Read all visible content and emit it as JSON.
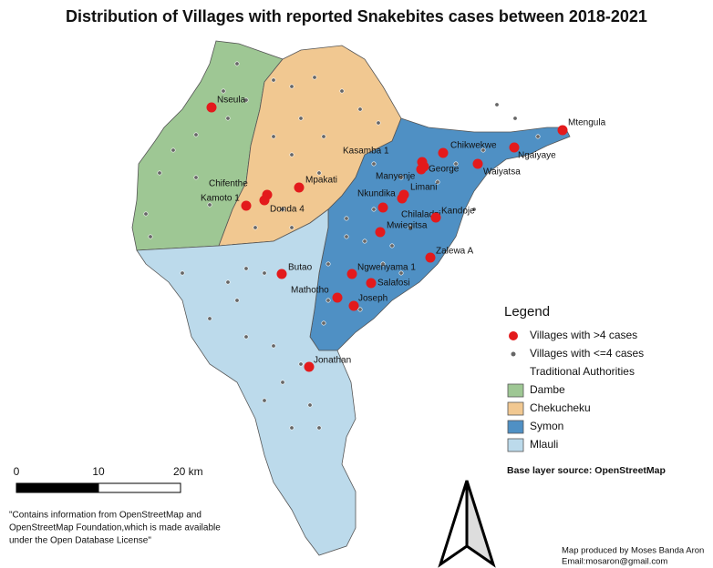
{
  "title": "Distribution of Villages with reported Snakebites cases between 2018-2021",
  "villages": [
    "Nseula",
    "Mpakati",
    "Chifenthe",
    "Kamoto 1",
    "Donda 4",
    "Kasamba 1",
    "Chikwekwe",
    "Mtengula",
    "Ngaiyaye",
    "Manyenje",
    "George",
    "Waiyatsa",
    "Limani",
    "Nkundika",
    "Chilaladzi",
    "Kandoje",
    "Mwiegitsa",
    "Zalewa A",
    "Butao",
    "Ngwenyama 1",
    "Salafosi",
    "Mathotho",
    "Joseph",
    "Jonathan"
  ],
  "legend": {
    "title": "Legend",
    "items": [
      {
        "label": "Villages with >4 cases",
        "color": "#e31a1c"
      },
      {
        "label": "Villages with <=4 cases",
        "color": "#666666"
      }
    ],
    "authorities_title": "Traditional Authorities",
    "authorities": [
      {
        "name": "Dambe",
        "color": "#9ec794"
      },
      {
        "name": "Chekucheku",
        "color": "#f1c891"
      },
      {
        "name": "Symon",
        "color": "#4f90c4"
      },
      {
        "name": "Mlauli",
        "color": "#bcdaeb"
      }
    ]
  },
  "scale_bar": {
    "labels": [
      "0",
      "10",
      "20 km"
    ]
  },
  "source": "Base layer source: OpenStreetMap",
  "attribution": [
    "\"Contains information from OpenStreetMap and",
    "OpenStreetMap Foundation,which is made available",
    "under the Open Database License\""
  ],
  "credit": [
    "Map produced by Moses Banda Aron",
    "Email:mosaron@gmail.com"
  ]
}
